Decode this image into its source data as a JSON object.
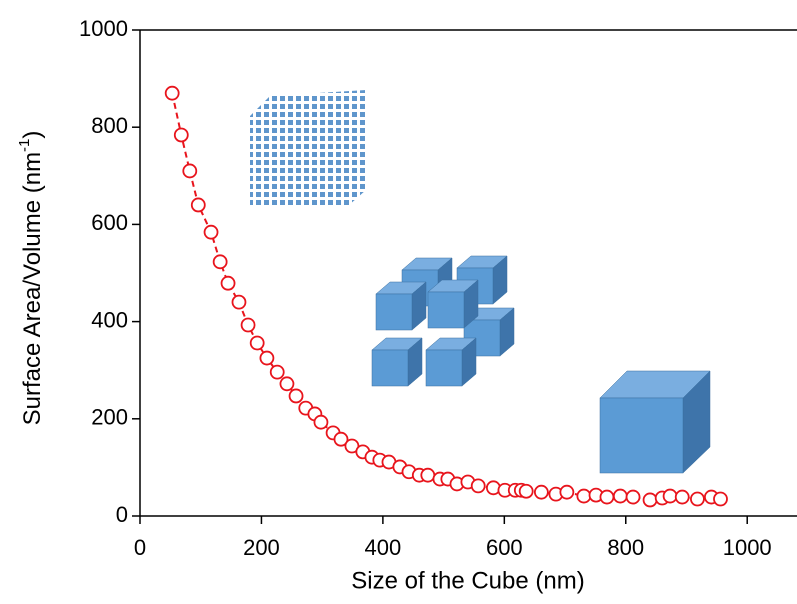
{
  "chart_data": {
    "type": "scatter",
    "xlabel": "Size of the Cube (nm)",
    "ylabel": {
      "text": "Surface Area/Volume (nm",
      "superscript": "-1",
      "suffix": ")"
    },
    "xlim": [
      0,
      1082
    ],
    "ylim": [
      0,
      1000
    ],
    "xticks": [
      0,
      200,
      400,
      600,
      800,
      1000
    ],
    "yticks": [
      0,
      200,
      400,
      600,
      800,
      1000
    ],
    "color": "#e8141c",
    "x": [
      53,
      68,
      82,
      96,
      117,
      132,
      145,
      163,
      178,
      193,
      209,
      226,
      242,
      257,
      273,
      288,
      298,
      318,
      331,
      349,
      367,
      382,
      395,
      410,
      428,
      443,
      460,
      474,
      494,
      507,
      522,
      540,
      557,
      582,
      601,
      618,
      628,
      636,
      661,
      685,
      703,
      731,
      751,
      769,
      791,
      812,
      840,
      860,
      873,
      893,
      918,
      941,
      956
    ],
    "y": [
      870,
      784,
      710,
      640,
      584,
      523,
      479,
      440,
      393,
      356,
      325,
      296,
      272,
      247,
      222,
      210,
      193,
      171,
      158,
      144,
      132,
      121,
      115,
      111,
      101,
      91,
      84,
      84,
      76,
      76,
      66,
      70,
      62,
      58,
      53,
      53,
      53,
      51,
      49,
      45,
      49,
      41,
      43,
      39,
      41,
      39,
      33,
      37,
      41,
      39,
      35,
      39,
      35
    ]
  }
}
